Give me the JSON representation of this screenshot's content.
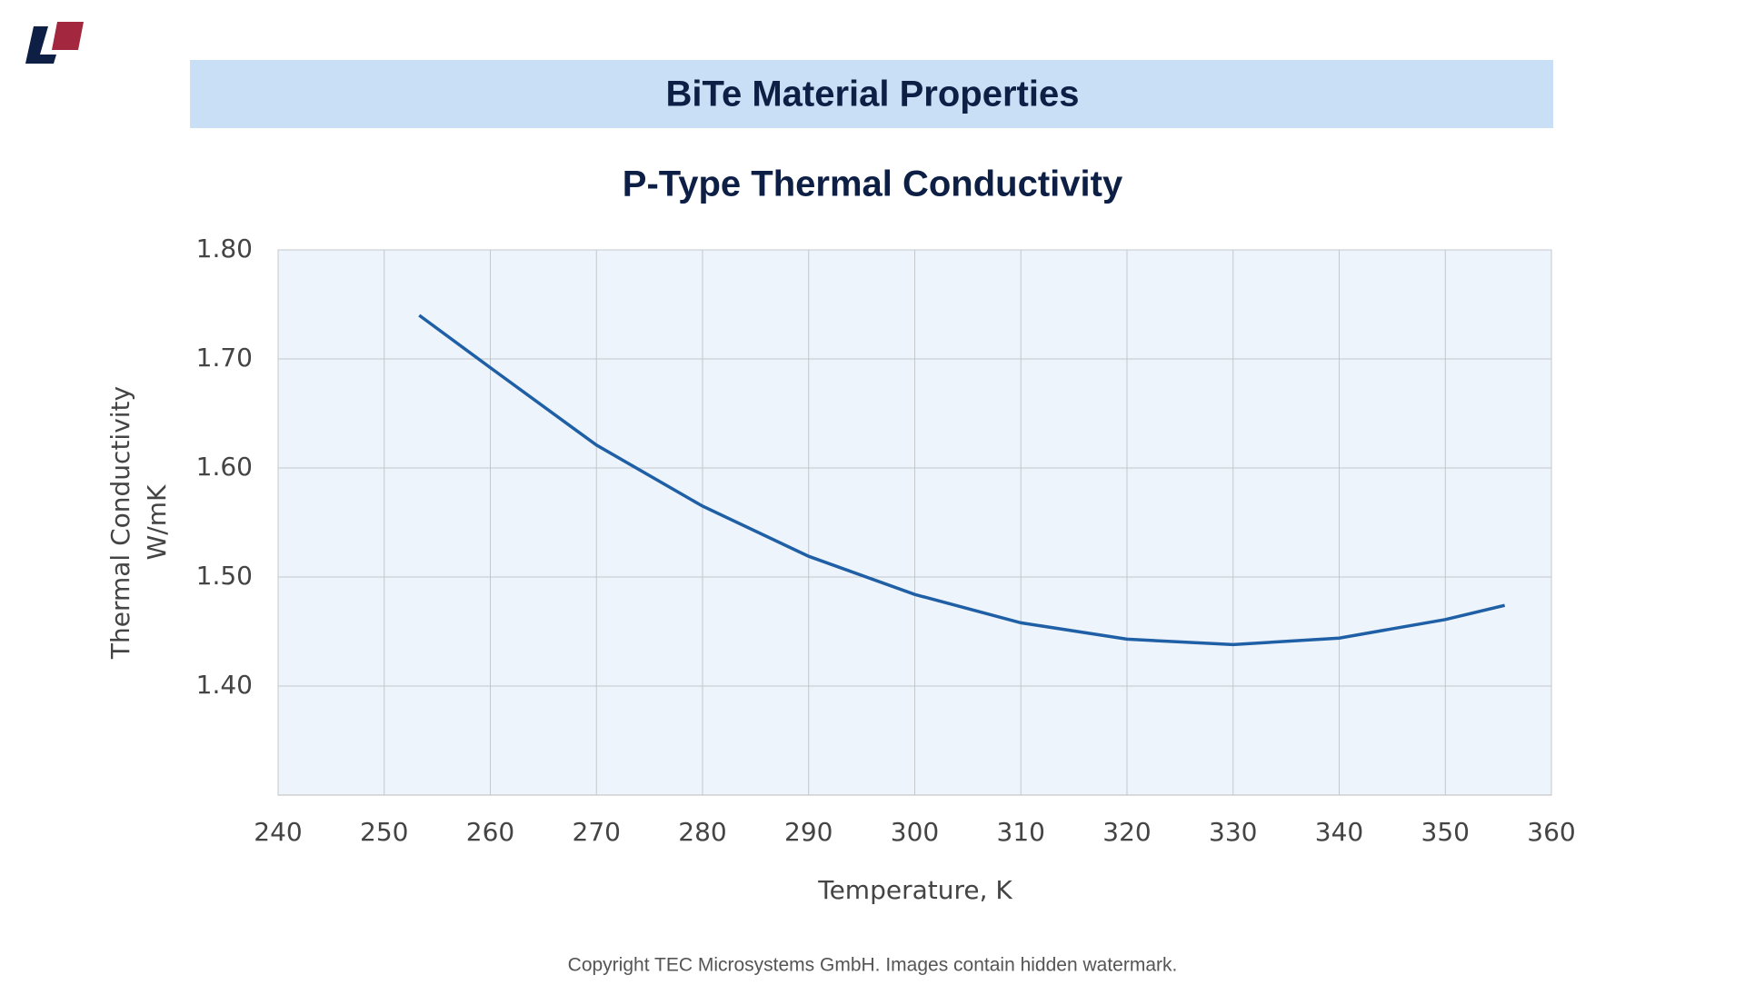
{
  "header": {
    "title": "BiTe Material Properties"
  },
  "chart_data": {
    "type": "line",
    "title": "P-Type  Thermal Conductivity",
    "x_label": "Temperature, K",
    "y_label": [
      "Thermal Conductivity",
      "W/mK"
    ],
    "x": [
      253.3,
      260,
      270,
      280,
      290,
      300,
      310,
      320,
      330,
      340,
      350,
      355.6
    ],
    "series": [
      {
        "name": "P-Type",
        "color": "#1f5fa6",
        "values": [
          1.74,
          1.692,
          1.621,
          1.565,
          1.519,
          1.484,
          1.458,
          1.443,
          1.438,
          1.444,
          1.461,
          1.474
        ]
      }
    ],
    "xlim": [
      240,
      360
    ],
    "xticks": [
      240,
      250,
      260,
      270,
      280,
      290,
      300,
      310,
      320,
      330,
      340,
      350,
      360
    ],
    "ylim": [
      1.3,
      1.8
    ],
    "yticks": [
      {
        "value": 1.4,
        "label": "1.40"
      },
      {
        "value": 1.5,
        "label": "1.50"
      },
      {
        "value": 1.6,
        "label": "1.60"
      },
      {
        "value": 1.7,
        "label": "1.70"
      },
      {
        "value": 1.8,
        "label": "1.80"
      }
    ],
    "grid": true
  },
  "footer": {
    "text": "Copyright TEC Microsystems GmbH. Images contain hidden watermark."
  }
}
